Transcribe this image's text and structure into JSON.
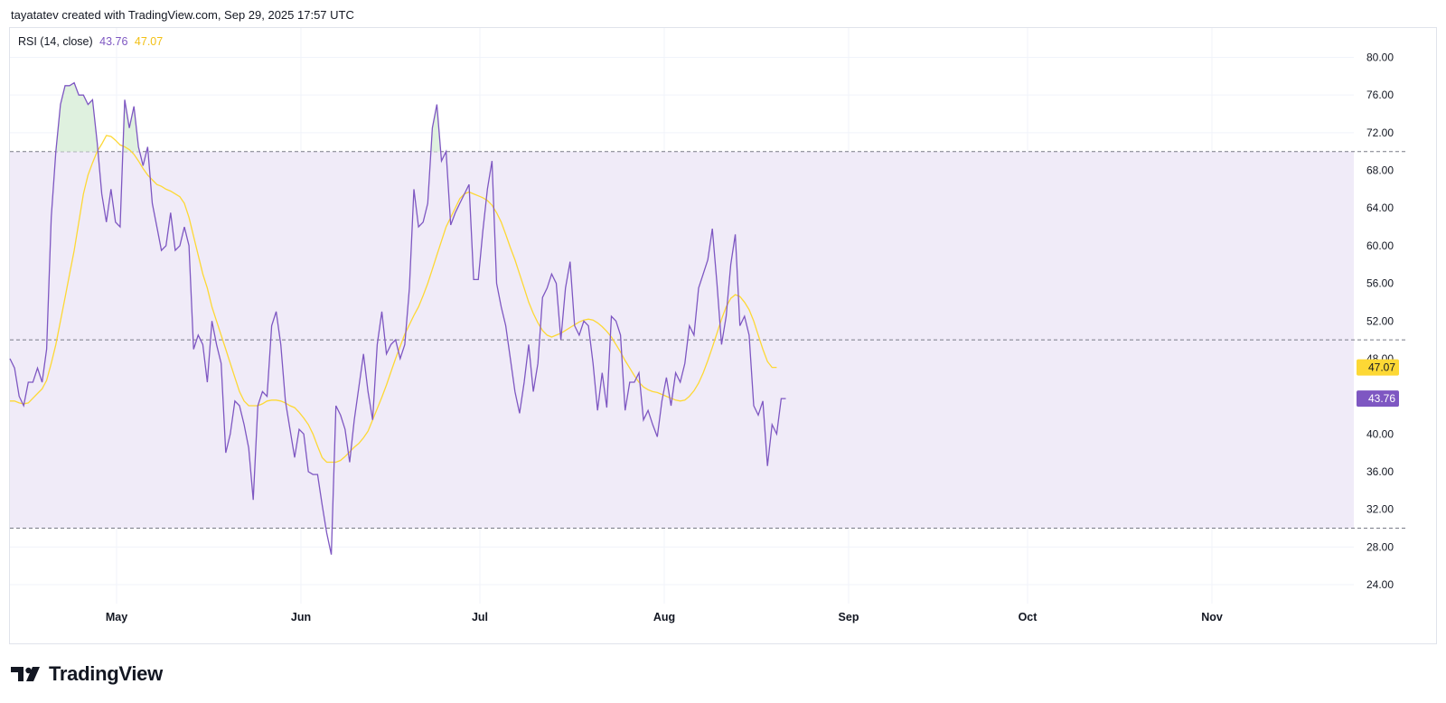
{
  "header": {
    "credit": "tayatatev created with TradingView.com, Sep 29, 2025 17:57 UTC"
  },
  "legend": {
    "label": "RSI (14, close)",
    "rsi_value": "43.76",
    "ma_value": "47.07"
  },
  "colors": {
    "rsi": "#7e57c2",
    "ma": "#fdd835",
    "band": "#f0ebf8",
    "overbought_fill": "#dff1df",
    "dashed": "#787b86",
    "grid": "#f0f3fa"
  },
  "brand": {
    "name": "TradingView"
  },
  "chart_data": {
    "type": "line",
    "y_ticks": [
      "80.00",
      "76.00",
      "72.00",
      "68.00",
      "64.00",
      "60.00",
      "56.00",
      "52.00",
      "48.00",
      "40.00",
      "36.00",
      "32.00",
      "28.00",
      "24.00"
    ],
    "x_ticks": [
      "May",
      "Jun",
      "Jul",
      "Aug",
      "Sep",
      "Oct",
      "Nov"
    ],
    "ylim": [
      22,
      82
    ],
    "levels": {
      "upper": 70,
      "middle": 50,
      "lower": 30
    },
    "last_values": {
      "rsi": "43.76",
      "ma": "47.07"
    },
    "series": [
      {
        "key": "rsi",
        "values": [
          48,
          47,
          44,
          43,
          45.5,
          45.5,
          47,
          45.5,
          49,
          63,
          70,
          75,
          77,
          77,
          77.3,
          76,
          76,
          75,
          75.5,
          71,
          65.5,
          62.5,
          66,
          62.5,
          62,
          75.5,
          72.5,
          74.8,
          70.5,
          68.5,
          70.5,
          64.5,
          62,
          59.5,
          60,
          63.5,
          59.5,
          60,
          62,
          60,
          49,
          50.5,
          49.5,
          45.5,
          52,
          49.5,
          47.5,
          38,
          40,
          43.5,
          43,
          41,
          38.5,
          33,
          43,
          44.5,
          44,
          51.5,
          53,
          49.5,
          43.5,
          40.5,
          37.5,
          40.5,
          40,
          36,
          35.7,
          35.7,
          32.5,
          29.5,
          27.2,
          43,
          42,
          40.5,
          37,
          41.5,
          45,
          48.5,
          44.5,
          41.5,
          49.5,
          53,
          48.5,
          49.5,
          50,
          48,
          49.5,
          55.5,
          66,
          62,
          62.5,
          64.5,
          72.5,
          75,
          69,
          70,
          62.2,
          63.5,
          64.5,
          65.5,
          66.5,
          56.4,
          56.4,
          61.5,
          66,
          69,
          56,
          53.5,
          51.5,
          48,
          44.5,
          42.2,
          45.5,
          49.5,
          44.5,
          47.5,
          54.5,
          55.5,
          57,
          56,
          50,
          55.5,
          58.3,
          51.5,
          50.5,
          52,
          51.5,
          47.5,
          42.5,
          46.5,
          42.8,
          52.5,
          52,
          50.5,
          42.5,
          45.5,
          45.5,
          46.5,
          41.5,
          42.5,
          41,
          39.7,
          43.5,
          46,
          43,
          46.5,
          45.5,
          47.5,
          51.5,
          50.5,
          55.5,
          57,
          58.5,
          61.8,
          56,
          49.5,
          52.5,
          58,
          61.2,
          51.5,
          52.5,
          50.5,
          43,
          42,
          43.5,
          36.6,
          41,
          40,
          43.76,
          43.76
        ]
      },
      {
        "key": "ma",
        "values": [
          43.5,
          43.5,
          43.3,
          43.2,
          43.3,
          43.8,
          44.3,
          44.8,
          45.7,
          47.5,
          49.5,
          52,
          54.5,
          57,
          59.5,
          62.5,
          65.5,
          67.5,
          68.8,
          70,
          70.8,
          71.7,
          71.6,
          71.2,
          70.7,
          70.5,
          70.2,
          69.7,
          69,
          68.2,
          67.5,
          67,
          66.5,
          66.3,
          66,
          65.8,
          65.5,
          65.2,
          64.5,
          63,
          61,
          59,
          57,
          55.5,
          53.5,
          52,
          50.5,
          49,
          47.5,
          46,
          44.5,
          43.5,
          43,
          43,
          43,
          43.2,
          43.5,
          43.6,
          43.6,
          43.5,
          43.3,
          43,
          42.8,
          42.3,
          41.7,
          41,
          40,
          38.7,
          37.5,
          37,
          37,
          37,
          37.2,
          37.6,
          38.1,
          38.6,
          39,
          39.6,
          40.3,
          41.5,
          42.7,
          43.9,
          45.2,
          46.6,
          48,
          49.3,
          50.6,
          51.6,
          52.6,
          53.5,
          54.7,
          56,
          57.5,
          59,
          60.5,
          62,
          63,
          64,
          65,
          65.5,
          65.7,
          65.5,
          65.3,
          65.1,
          64.8,
          64.3,
          63.5,
          62.5,
          61.2,
          59.8,
          58.5,
          57,
          55.5,
          54,
          52.8,
          51.8,
          51,
          50.5,
          50.3,
          50.5,
          50.7,
          51,
          51.3,
          51.6,
          51.9,
          52.1,
          52.2,
          52.1,
          51.8,
          51.4,
          50.9,
          50.3,
          49.5,
          48.7,
          47.8,
          47,
          46.2,
          45.5,
          45,
          44.7,
          44.5,
          44.4,
          44.2,
          44,
          43.8,
          43.6,
          43.5,
          43.6,
          44,
          44.6,
          45.4,
          46.5,
          47.8,
          49.2,
          50.7,
          52.2,
          53.5,
          54.4,
          54.8,
          54.6,
          54,
          53.2,
          52,
          50.5,
          49,
          47.7,
          47.07,
          47.07
        ]
      }
    ]
  }
}
